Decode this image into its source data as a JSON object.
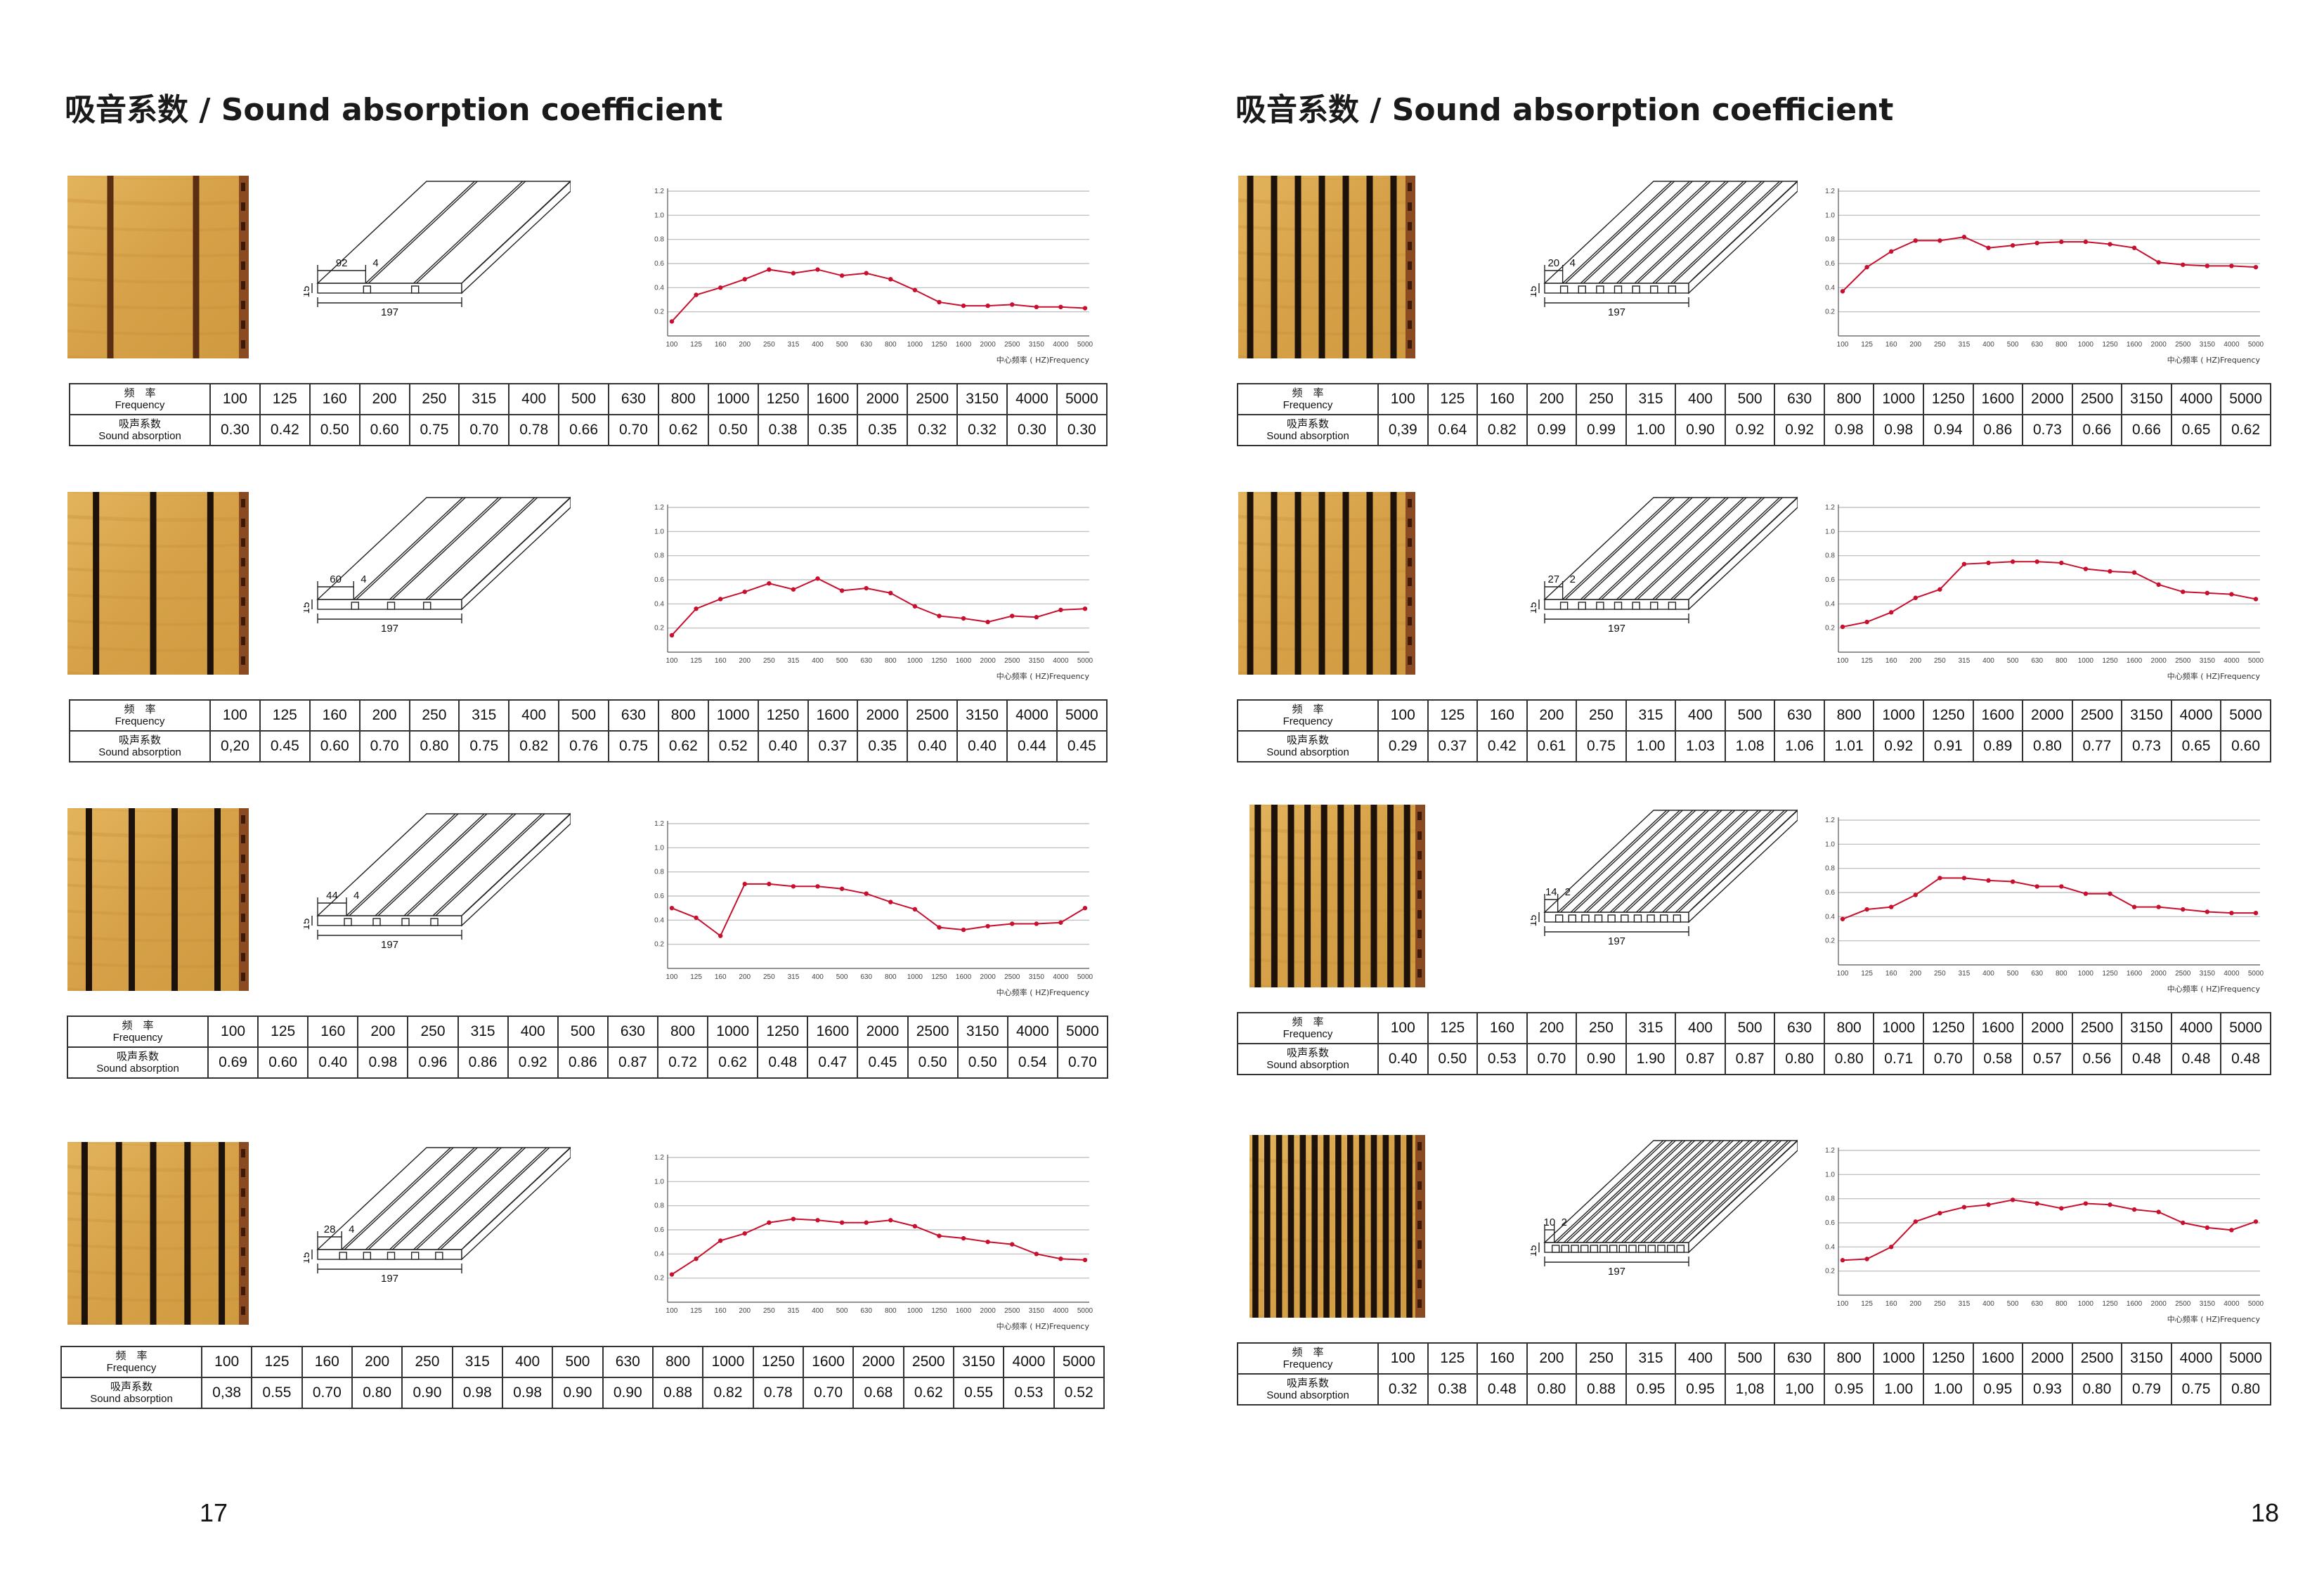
{
  "pages": [
    {
      "title": "吸音系数 / Sound absorption coefficient",
      "page_number": "17",
      "panels": [
        {
          "dims": {
            "a": "92",
            "b": "4",
            "t": "15",
            "w": "197"
          },
          "slots": 2,
          "absorption": [
            "0.30",
            "0.42",
            "0.50",
            "0.60",
            "0.75",
            "0.70",
            "0.78",
            "0.66",
            "0.70",
            "0.62",
            "0.50",
            "0.38",
            "0.35",
            "0.35",
            "0.32",
            "0.32",
            "0.30",
            "0.30"
          ]
        },
        {
          "dims": {
            "a": "60",
            "b": "4",
            "t": "15",
            "w": "197"
          },
          "slots": 3,
          "absorption": [
            "0,20",
            "0.45",
            "0.60",
            "0.70",
            "0.80",
            "0.75",
            "0.82",
            "0.76",
            "0.75",
            "0.62",
            "0.52",
            "0.40",
            "0.37",
            "0.35",
            "0.40",
            "0.40",
            "0.44",
            "0.45"
          ]
        },
        {
          "dims": {
            "a": "44",
            "b": "4",
            "t": "15",
            "w": "197"
          },
          "slots": 4,
          "absorption": [
            "0.69",
            "0.60",
            "0.40",
            "0.98",
            "0.96",
            "0.86",
            "0.92",
            "0.86",
            "0.87",
            "0.72",
            "0.62",
            "0.48",
            "0.47",
            "0.45",
            "0.50",
            "0.50",
            "0.54",
            "0.70"
          ]
        },
        {
          "dims": {
            "a": "28",
            "b": "4",
            "t": "15",
            "w": "197"
          },
          "slots": 5,
          "absorption": [
            "0,38",
            "0.55",
            "0.70",
            "0.80",
            "0.90",
            "0.98",
            "0.98",
            "0.90",
            "0.90",
            "0.88",
            "0.82",
            "0.78",
            "0.70",
            "0.68",
            "0.62",
            "0.55",
            "0.53",
            "0.52"
          ]
        }
      ]
    },
    {
      "title": "吸音系数 / Sound absorption coefficient",
      "page_number": "18",
      "panels": [
        {
          "dims": {
            "a": "20",
            "b": "4",
            "t": "15",
            "w": "197"
          },
          "slots": 7,
          "absorption": [
            "0,39",
            "0.64",
            "0.82",
            "0.99",
            "0.99",
            "1.00",
            "0.90",
            "0.92",
            "0.92",
            "0.98",
            "0.98",
            "0.94",
            "0.86",
            "0.73",
            "0.66",
            "0.66",
            "0.65",
            "0.62"
          ]
        },
        {
          "dims": {
            "a": "27",
            "b": "2",
            "t": "15",
            "w": "197"
          },
          "slots": 7,
          "absorption": [
            "0.29",
            "0.37",
            "0.42",
            "0.61",
            "0.75",
            "1.00",
            "1.03",
            "1.08",
            "1.06",
            "1.01",
            "0.92",
            "0.91",
            "0.89",
            "0.80",
            "0.77",
            "0.73",
            "0.65",
            "0.60"
          ]
        },
        {
          "dims": {
            "a": "14",
            "b": "2",
            "t": "15",
            "w": "197"
          },
          "slots": 10,
          "absorption": [
            "0.40",
            "0.50",
            "0.53",
            "0.70",
            "0.90",
            "1.90",
            "0.87",
            "0.87",
            "0.80",
            "0.80",
            "0.71",
            "0.70",
            "0.58",
            "0.57",
            "0.56",
            "0.48",
            "0.48",
            "0.48"
          ]
        },
        {
          "dims": {
            "a": "10",
            "b": "2",
            "t": "15",
            "w": "197"
          },
          "slots": 14,
          "absorption": [
            "0.32",
            "0.38",
            "0.48",
            "0.80",
            "0.88",
            "0.95",
            "0.95",
            "1,08",
            "1,00",
            "0.95",
            "1.00",
            "1.00",
            "0.95",
            "0.93",
            "0.80",
            "0.79",
            "0.75",
            "0.80"
          ]
        }
      ]
    }
  ],
  "table_labels": {
    "freq_zh": "频　率",
    "freq_en": "Frequency",
    "abs_zh": "吸声系数",
    "abs_en": "Sound absorption"
  },
  "frequencies": [
    "100",
    "125",
    "160",
    "200",
    "250",
    "315",
    "400",
    "500",
    "630",
    "800",
    "1000",
    "1250",
    "1600",
    "2000",
    "2500",
    "3150",
    "4000",
    "5000"
  ],
  "chart_axis": {
    "y_ticks": [
      "0.2",
      "0.4",
      "0.6",
      "0.8",
      "1.0",
      "1.2"
    ],
    "x_caption": "中心频率 ( HZ)Frequency"
  },
  "chart_data": [
    {
      "type": "line",
      "ylim": [
        0,
        1.2
      ],
      "x": [
        "100",
        "125",
        "160",
        "200",
        "250",
        "315",
        "400",
        "500",
        "630",
        "800",
        "1000",
        "1250",
        "1600",
        "2000",
        "2500",
        "3150",
        "4000",
        "5000"
      ],
      "series": [
        {
          "values": [
            0.12,
            0.34,
            0.4,
            0.47,
            0.55,
            0.52,
            0.55,
            0.5,
            0.52,
            0.47,
            0.38,
            0.28,
            0.25,
            0.25,
            0.26,
            0.24,
            0.24,
            0.23
          ]
        }
      ]
    },
    {
      "type": "line",
      "ylim": [
        0,
        1.2
      ],
      "x": [
        "100",
        "125",
        "160",
        "200",
        "250",
        "315",
        "400",
        "500",
        "630",
        "800",
        "1000",
        "1250",
        "1600",
        "2000",
        "2500",
        "3150",
        "4000",
        "5000"
      ],
      "series": [
        {
          "values": [
            0.14,
            0.36,
            0.44,
            0.5,
            0.57,
            0.52,
            0.61,
            0.51,
            0.53,
            0.49,
            0.38,
            0.3,
            0.28,
            0.25,
            0.3,
            0.29,
            0.35,
            0.36
          ]
        }
      ]
    },
    {
      "type": "line",
      "ylim": [
        0,
        1.2
      ],
      "x": [
        "100",
        "125",
        "160",
        "200",
        "250",
        "315",
        "400",
        "500",
        "630",
        "800",
        "1000",
        "1250",
        "1600",
        "2000",
        "2500",
        "3150",
        "4000",
        "5000"
      ],
      "series": [
        {
          "values": [
            0.5,
            0.42,
            0.27,
            0.7,
            0.7,
            0.68,
            0.68,
            0.66,
            0.62,
            0.55,
            0.49,
            0.34,
            0.32,
            0.35,
            0.37,
            0.37,
            0.38,
            0.5
          ]
        }
      ]
    },
    {
      "type": "line",
      "ylim": [
        0,
        1.2
      ],
      "x": [
        "100",
        "125",
        "160",
        "200",
        "250",
        "315",
        "400",
        "500",
        "630",
        "800",
        "1000",
        "1250",
        "1600",
        "2000",
        "2500",
        "3150",
        "4000",
        "5000"
      ],
      "series": [
        {
          "values": [
            0.23,
            0.36,
            0.51,
            0.57,
            0.66,
            0.69,
            0.68,
            0.66,
            0.66,
            0.68,
            0.63,
            0.55,
            0.53,
            0.5,
            0.48,
            0.4,
            0.36,
            0.35
          ]
        }
      ]
    },
    {
      "type": "line",
      "ylim": [
        0,
        1.2
      ],
      "x": [
        "100",
        "125",
        "160",
        "200",
        "250",
        "315",
        "400",
        "500",
        "630",
        "800",
        "1000",
        "1250",
        "1600",
        "2000",
        "2500",
        "3150",
        "4000",
        "5000"
      ],
      "series": [
        {
          "values": [
            0.37,
            0.57,
            0.7,
            0.79,
            0.79,
            0.82,
            0.73,
            0.75,
            0.77,
            0.78,
            0.78,
            0.76,
            0.73,
            0.61,
            0.59,
            0.58,
            0.58,
            0.57
          ]
        }
      ]
    },
    {
      "type": "line",
      "ylim": [
        0,
        1.2
      ],
      "x": [
        "100",
        "125",
        "160",
        "200",
        "250",
        "315",
        "400",
        "500",
        "630",
        "800",
        "1000",
        "1250",
        "1600",
        "2000",
        "2500",
        "3150",
        "4000",
        "5000"
      ],
      "series": [
        {
          "values": [
            0.21,
            0.25,
            0.33,
            0.45,
            0.52,
            0.73,
            0.74,
            0.75,
            0.75,
            0.74,
            0.69,
            0.67,
            0.66,
            0.56,
            0.5,
            0.49,
            0.48,
            0.44
          ]
        }
      ]
    },
    {
      "type": "line",
      "ylim": [
        0,
        1.2
      ],
      "x": [
        "100",
        "125",
        "160",
        "200",
        "250",
        "315",
        "400",
        "500",
        "630",
        "800",
        "1000",
        "1250",
        "1600",
        "2000",
        "2500",
        "3150",
        "4000",
        "5000"
      ],
      "series": [
        {
          "values": [
            0.38,
            0.46,
            0.48,
            0.58,
            0.72,
            0.72,
            0.7,
            0.69,
            0.65,
            0.65,
            0.59,
            0.59,
            0.48,
            0.48,
            0.46,
            0.44,
            0.43,
            0.43
          ]
        }
      ]
    },
    {
      "type": "line",
      "ylim": [
        0,
        1.2
      ],
      "x": [
        "100",
        "125",
        "160",
        "200",
        "250",
        "315",
        "400",
        "500",
        "630",
        "800",
        "1000",
        "1250",
        "1600",
        "2000",
        "2500",
        "3150",
        "4000",
        "5000"
      ],
      "series": [
        {
          "values": [
            0.29,
            0.3,
            0.4,
            0.61,
            0.68,
            0.73,
            0.75,
            0.79,
            0.76,
            0.72,
            0.76,
            0.75,
            0.71,
            0.69,
            0.6,
            0.56,
            0.54,
            0.61
          ]
        }
      ]
    }
  ],
  "colors": {
    "line": "#c8102e",
    "grid": "#b8b8b8",
    "wood": "#d9a94c",
    "wood_dark": "#c28a33"
  }
}
